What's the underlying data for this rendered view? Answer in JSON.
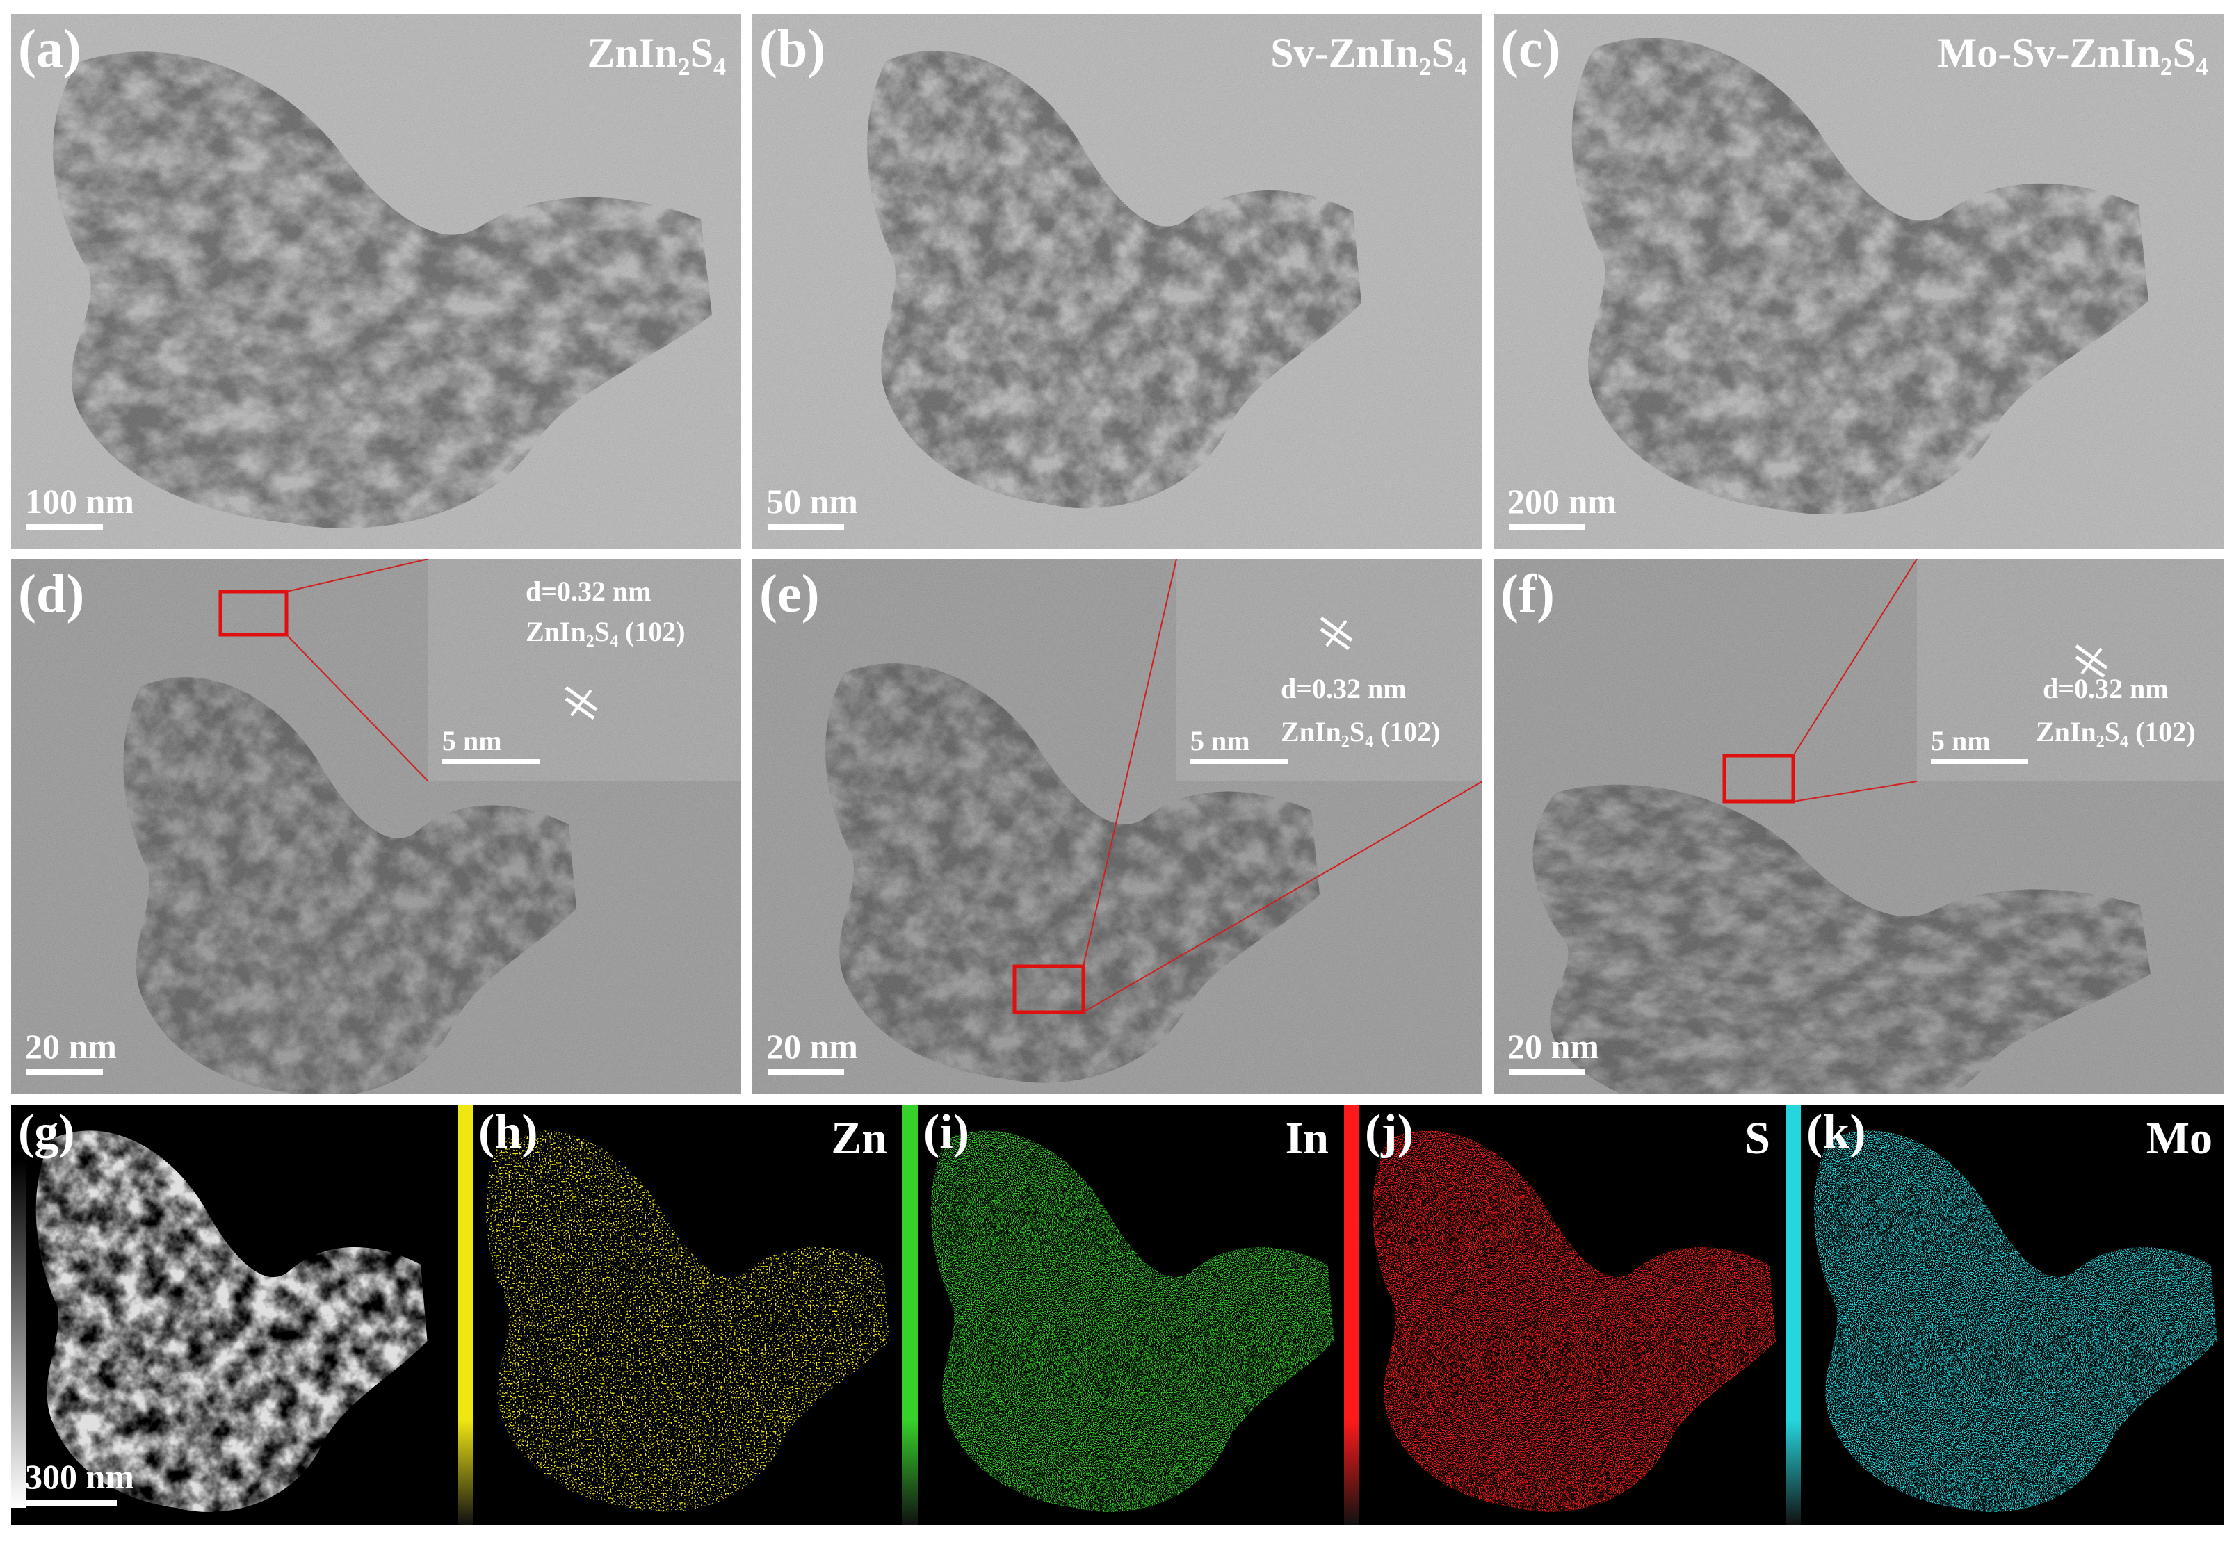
{
  "panels": [
    {
      "label": "(a)",
      "title": "ZnIn₂S₄",
      "scale_bar": "100 nm"
    },
    {
      "label": "(b)",
      "title": "Sv-ZnIn₂S₄",
      "scale_bar": "50 nm"
    },
    {
      "label": "(c)",
      "title": "Mo-Sv-ZnIn₂S₄",
      "scale_bar": "200 nm"
    },
    {
      "label": "(d)",
      "scale_bar": "20 nm",
      "inset": {
        "d_spacing": "d=0.32 nm",
        "plane": "ZnIn₂S₄ (102)",
        "scale_bar": "5 nm"
      }
    },
    {
      "label": "(e)",
      "scale_bar": "20 nm",
      "inset": {
        "d_spacing": "d=0.32 nm",
        "plane": "ZnIn₂S₄ (102)",
        "scale_bar": "5 nm"
      }
    },
    {
      "label": "(f)",
      "scale_bar": "20 nm",
      "inset": {
        "d_spacing": "d=0.32 nm",
        "plane": "ZnIn₂S₄ (102)",
        "scale_bar": "5 nm"
      }
    },
    {
      "label": "(g)",
      "scale_bar": "300 nm"
    },
    {
      "label": "(h)",
      "element": "Zn"
    },
    {
      "label": "(i)",
      "element": "In"
    },
    {
      "label": "(j)",
      "element": "S"
    },
    {
      "label": "(k)",
      "element": "Mo"
    }
  ]
}
